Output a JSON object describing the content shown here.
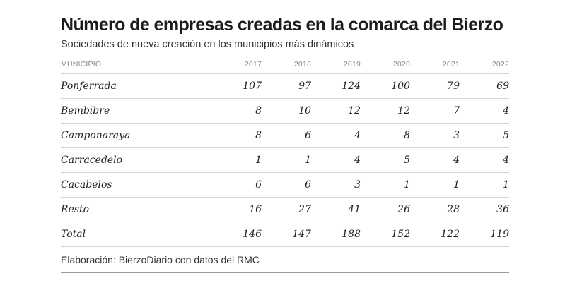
{
  "chart_data": {
    "type": "table",
    "title": "Número de empresas creadas en la comarca del Bierzo",
    "subtitle": "Sociedades de nueva creación en los municipios más dinámicos",
    "columns": [
      "MUNICIPIO",
      "2017",
      "2018",
      "2019",
      "2020",
      "2021",
      "2022"
    ],
    "rows": [
      {
        "name": "Ponferrada",
        "values": [
          "107",
          "97",
          "124",
          "100",
          "79",
          "69"
        ]
      },
      {
        "name": "Bembibre",
        "values": [
          "8",
          "10",
          "12",
          "12",
          "7",
          "4"
        ]
      },
      {
        "name": "Camponaraya",
        "values": [
          "8",
          "6",
          "4",
          "8",
          "3",
          "5"
        ]
      },
      {
        "name": "Carracedelo",
        "values": [
          "1",
          "1",
          "4",
          "5",
          "4",
          "4"
        ]
      },
      {
        "name": "Cacabelos",
        "values": [
          "6",
          "6",
          "3",
          "1",
          "1",
          "1"
        ]
      },
      {
        "name": "Resto",
        "values": [
          "16",
          "27",
          "41",
          "26",
          "28",
          "36"
        ]
      },
      {
        "name": "Total",
        "values": [
          "146",
          "147",
          "188",
          "152",
          "122",
          "119"
        ]
      }
    ],
    "source": "Elaboración: BierzoDiario con datos del RMC"
  }
}
